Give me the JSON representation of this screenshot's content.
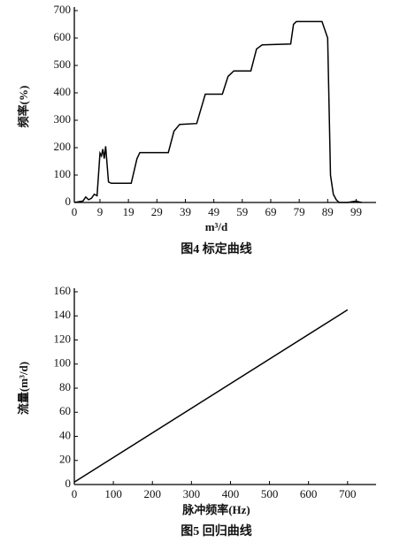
{
  "chart_data": [
    {
      "type": "line",
      "y_label": "频率(%)",
      "x_label": "m³/d",
      "caption": "图4 标定曲线",
      "x": [
        0,
        3,
        4,
        5,
        6,
        7,
        8,
        9,
        9.5,
        10,
        10.5,
        11,
        12,
        13,
        20,
        22,
        23,
        33,
        35,
        37,
        43,
        45,
        46,
        52,
        54,
        56,
        62,
        64,
        66,
        76,
        77,
        78,
        86,
        87,
        89,
        90,
        91,
        92,
        93,
        96,
        99,
        100,
        101
      ],
      "values": [
        0,
        5,
        20,
        10,
        15,
        30,
        25,
        180,
        170,
        195,
        160,
        205,
        75,
        70,
        70,
        160,
        182,
        182,
        260,
        285,
        288,
        360,
        395,
        395,
        460,
        480,
        480,
        560,
        575,
        578,
        650,
        660,
        660,
        660,
        600,
        100,
        30,
        10,
        0,
        0,
        5,
        2,
        0
      ],
      "color": "#000000",
      "xlim": [
        0,
        106
      ],
      "xticks": [
        0,
        9,
        19,
        29,
        39,
        49,
        59,
        69,
        79,
        89,
        99
      ],
      "ylim": [
        0,
        700
      ],
      "yticks": [
        0,
        100,
        200,
        300,
        400,
        500,
        600,
        700
      ]
    },
    {
      "type": "line",
      "y_label": "流量(m³/d)",
      "x_label": "脉冲频率(Hz)",
      "caption": "图5 回归曲线",
      "x": [
        0,
        700
      ],
      "values": [
        2,
        145
      ],
      "color": "#000000",
      "xlim": [
        0,
        773
      ],
      "xticks": [
        0,
        100,
        200,
        300,
        400,
        500,
        600,
        700
      ],
      "ylim": [
        0,
        160
      ],
      "yticks": [
        0,
        20,
        40,
        60,
        80,
        100,
        120,
        140,
        160
      ]
    }
  ]
}
